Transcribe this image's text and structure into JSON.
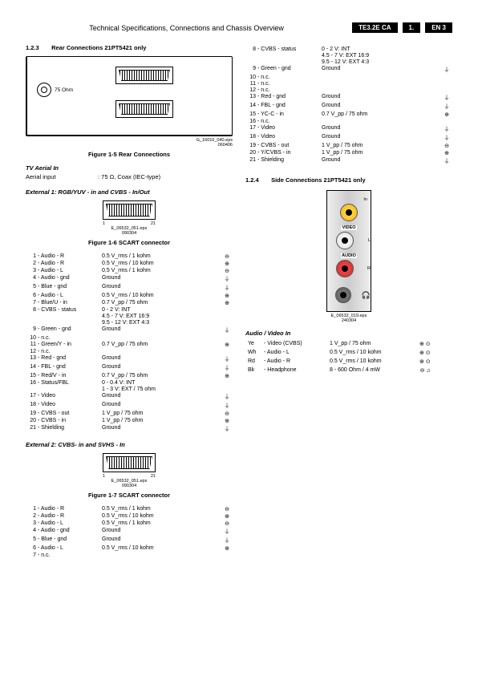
{
  "header": {
    "title": "Technical Specifications, Connections and Chassis Overview",
    "badges": [
      "TE3.2E CA",
      "1.",
      "EN 3"
    ]
  },
  "s123": {
    "num": "1.2.3",
    "title": "Rear Connections 21PT5421 only",
    "ohm": "75 Ohm",
    "imgref": "G_16010_040.eps\n060406"
  },
  "fig15": "Figure 1-5 Rear Connections",
  "tvaerial": {
    "head": "TV Aerial In",
    "k": "Aerial input",
    "v": ": 75 Ω, Coax (IEC-type)"
  },
  "ext1head": "External 1: RGB/YUV - in and CVBS - In/Out",
  "scartref": "E_06532_051.eps\n090304",
  "fig16": "Figure 1-6 SCART connector",
  "scartPinL": "1",
  "scartPinR": "21",
  "pins1": [
    {
      "n": "1",
      "l": "- Audio - R",
      "v": "0.5 V_rms / 1 kohm",
      "s": "⊖"
    },
    {
      "n": "2",
      "l": "- Audio - R",
      "v": "0.5 V_rms / 10 kohm",
      "s": "⊕"
    },
    {
      "n": "3",
      "l": "- Audio - L",
      "v": "0.5 V_rms / 1 kohm",
      "s": "⊖"
    },
    {
      "n": "4",
      "l": "- Audio - gnd",
      "v": "Ground",
      "s": "⏚"
    },
    {
      "n": "5",
      "l": "- Blue - gnd",
      "v": "Ground",
      "s": "⏚"
    },
    {
      "n": "6",
      "l": "- Audio - L",
      "v": "0.5 V_rms / 10 kohm",
      "s": "⊕"
    },
    {
      "n": "7",
      "l": "- Blue/U - in",
      "v": "0.7 V_pp / 75 ohm",
      "s": "⊕"
    },
    {
      "n": "8",
      "l": "- CVBS - status",
      "v": "0 - 2 V: INT\n4.5 - 7 V: EXT 16:9\n9.5 - 12 V: EXT 4:3",
      "s": ""
    },
    {
      "n": "9",
      "l": "- Green - gnd",
      "v": "Ground",
      "s": "⏚"
    },
    {
      "n": "10",
      "l": "- n.c.",
      "v": "",
      "s": ""
    },
    {
      "n": "11",
      "l": "- Green/Y - in",
      "v": "0.7 V_pp / 75 ohm",
      "s": "⊕"
    },
    {
      "n": "12",
      "l": "- n.c.",
      "v": "",
      "s": ""
    },
    {
      "n": "13",
      "l": "- Red - gnd",
      "v": "Ground",
      "s": "⏚"
    },
    {
      "n": "14",
      "l": "- FBL - gnd",
      "v": "Ground",
      "s": "⏚"
    },
    {
      "n": "15",
      "l": "- Red/V - in",
      "v": "0.7 V_pp / 75 ohm",
      "s": "⊕"
    },
    {
      "n": "16",
      "l": "- Status/FBL",
      "v": "0 - 0.4 V: INT\n1 - 3 V: EXT / 75 ohm",
      "s": ""
    },
    {
      "n": "17",
      "l": "- Video",
      "v": "Ground",
      "s": "⏚"
    },
    {
      "n": "18",
      "l": "- Video",
      "v": "Ground",
      "s": "⏚"
    },
    {
      "n": "19",
      "l": "- CVBS - out",
      "v": "1 V_pp / 75 ohm",
      "s": "⊖"
    },
    {
      "n": "20",
      "l": "- CVBS - in",
      "v": "1 V_pp / 75 ohm",
      "s": "⊕"
    },
    {
      "n": "21",
      "l": "- Shielding",
      "v": "Ground",
      "s": "⏚"
    }
  ],
  "ext2head": "External 2: CVBS- in and SVHS - In",
  "fig17": "Figure 1-7 SCART connector",
  "pins2a": [
    {
      "n": "1",
      "l": "- Audio - R",
      "v": "0.5 V_rms / 1 kohm",
      "s": "⊖"
    },
    {
      "n": "2",
      "l": "- Audio - R",
      "v": "0.5 V_rms / 10 kohm",
      "s": "⊕"
    },
    {
      "n": "3",
      "l": "- Audio - L",
      "v": "0.5 V_rms / 1 kohm",
      "s": "⊖"
    },
    {
      "n": "4",
      "l": "- Audio - gnd",
      "v": "Ground",
      "s": "⏚"
    },
    {
      "n": "5",
      "l": "- Blue - gnd",
      "v": "Ground",
      "s": "⏚"
    },
    {
      "n": "6",
      "l": "- Audio - L",
      "v": "0.5 V_rms / 10 kohm",
      "s": "⊕"
    },
    {
      "n": "7",
      "l": "- n.c.",
      "v": "",
      "s": ""
    }
  ],
  "pins2b": [
    {
      "n": "8",
      "l": "- CVBS - status",
      "v": "0 - 2 V: INT\n4.5 - 7 V: EXT 16:9\n9.5 - 12 V: EXT 4:3",
      "s": ""
    },
    {
      "n": "9",
      "l": "- Green - gnd",
      "v": "Ground",
      "s": "⏚"
    },
    {
      "n": "10",
      "l": "- n.c.",
      "v": "",
      "s": ""
    },
    {
      "n": "11",
      "l": "- n.c.",
      "v": "",
      "s": ""
    },
    {
      "n": "12",
      "l": "- n.c.",
      "v": "",
      "s": ""
    },
    {
      "n": "13",
      "l": "- Red - gnd",
      "v": "Ground",
      "s": "⏚"
    },
    {
      "n": "14",
      "l": "- FBL - gnd",
      "v": "Ground",
      "s": "⏚"
    },
    {
      "n": "15",
      "l": "- YC-C - in",
      "v": "0.7 V_pp / 75 ohm",
      "s": "⊕"
    },
    {
      "n": "16",
      "l": "- n.c.",
      "v": "",
      "s": ""
    },
    {
      "n": "17",
      "l": "- Video",
      "v": "Ground",
      "s": "⏚"
    },
    {
      "n": "18",
      "l": "- Video",
      "v": "Ground",
      "s": "⏚"
    },
    {
      "n": "19",
      "l": "- CVBS - out",
      "v": "1 V_pp / 75 ohm",
      "s": "⊖"
    },
    {
      "n": "20",
      "l": "- Y/CVBS - in",
      "v": "1 V_pp / 75 ohm",
      "s": "⊕"
    },
    {
      "n": "21",
      "l": "- Shielding",
      "v": "Ground",
      "s": "⏚"
    }
  ],
  "s124": {
    "num": "1.2.4",
    "title": "Side Connections 21PT5421 only"
  },
  "side": {
    "in": "In",
    "video": "VIDEO",
    "audio": "AUDIO",
    "L": "L",
    "R": "R",
    "ref": "E_06532_019.eps\n240304"
  },
  "avhead": "Audio / Video In",
  "av": [
    {
      "c": "Ye",
      "l": "- Video (CVBS)",
      "v": "1 V_pp / 75 ohm",
      "s": "⊕ ⊙"
    },
    {
      "c": "Wh",
      "l": "- Audio - L",
      "v": "0.5 V_rms / 10 kohm",
      "s": "⊕ ⊙"
    },
    {
      "c": "Rd",
      "l": "- Audio - R",
      "v": "0.5 V_rms / 10 kohm",
      "s": "⊕ ⊙"
    },
    {
      "c": "Bk",
      "l": "- Headphone",
      "v": "8 - 600 Ohm / 4 mW",
      "s": "⊖ ♫"
    }
  ]
}
